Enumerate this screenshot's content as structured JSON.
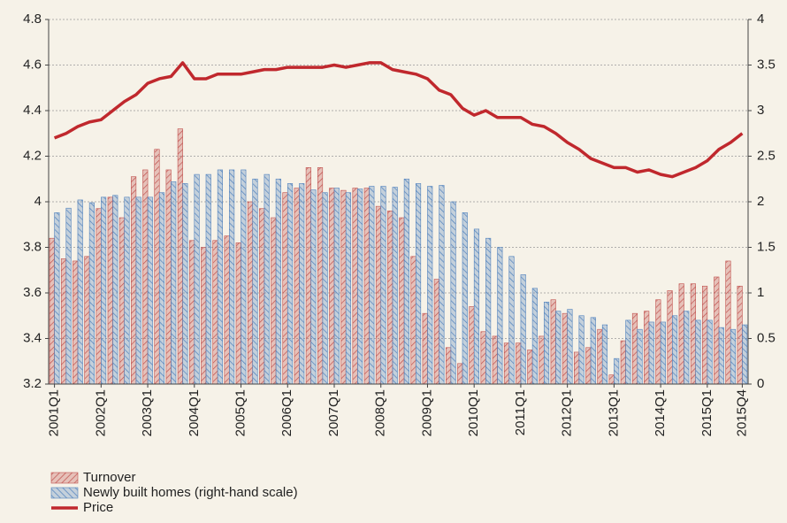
{
  "chart_data": {
    "type": "bar",
    "categories": [
      "2001Q1",
      null,
      null,
      null,
      "2002Q1",
      null,
      null,
      null,
      "2003Q1",
      null,
      null,
      null,
      "2004Q1",
      null,
      null,
      null,
      "2005Q1",
      null,
      null,
      null,
      "2006Q1",
      null,
      null,
      null,
      "2007Q1",
      null,
      null,
      null,
      "2008Q1",
      null,
      null,
      null,
      "2009Q1",
      null,
      null,
      null,
      "2010Q1",
      null,
      null,
      null,
      "2011Q1",
      null,
      null,
      null,
      "2012Q1",
      null,
      null,
      null,
      "2013Q1",
      null,
      null,
      null,
      "2014Q1",
      null,
      null,
      null,
      "2015Q1",
      null,
      null,
      "2015Q4"
    ],
    "series": [
      {
        "name": "Turnover",
        "color": "#c0504d",
        "values": [
          3.84,
          3.75,
          3.74,
          3.76,
          3.97,
          4.02,
          3.93,
          4.11,
          4.14,
          4.23,
          4.14,
          4.32,
          3.83,
          3.8,
          3.83,
          3.85,
          3.82,
          4.0,
          3.97,
          3.93,
          4.04,
          4.06,
          4.15,
          4.15,
          4.06,
          4.05,
          4.06,
          4.06,
          3.98,
          3.96,
          3.93,
          3.76,
          3.51,
          3.66,
          3.36,
          3.29,
          3.54,
          3.43,
          3.41,
          3.38,
          3.38,
          3.35,
          3.41,
          3.57,
          3.51,
          3.34,
          3.36,
          3.44,
          3.24,
          3.39,
          3.51,
          3.52,
          3.57,
          3.61,
          3.64,
          3.64,
          3.63,
          3.67,
          3.74,
          3.63
        ]
      },
      {
        "name": "Newly built homes (right-hand scale)",
        "color": "#4f81bd",
        "axis": "y2",
        "values": [
          1.88,
          1.93,
          2.02,
          1.99,
          2.05,
          2.07,
          2.05,
          2.05,
          2.05,
          2.1,
          2.22,
          2.2,
          2.3,
          2.3,
          2.35,
          2.35,
          2.35,
          2.25,
          2.3,
          2.25,
          2.2,
          2.2,
          2.13,
          2.1,
          2.15,
          2.1,
          2.14,
          2.17,
          2.17,
          2.16,
          2.25,
          2.2,
          2.17,
          2.18,
          2.0,
          1.88,
          1.7,
          1.6,
          1.5,
          1.4,
          1.2,
          1.05,
          0.9,
          0.8,
          0.82,
          0.75,
          0.73,
          0.65,
          0.28,
          0.7,
          0.6,
          0.68,
          0.68,
          0.75,
          0.8,
          0.7,
          0.7,
          0.62,
          0.6,
          0.65
        ]
      },
      {
        "name": "Price",
        "color": "#c0282d",
        "type": "line",
        "values": [
          4.28,
          4.3,
          4.33,
          4.35,
          4.36,
          4.4,
          4.44,
          4.47,
          4.52,
          4.54,
          4.55,
          4.61,
          4.54,
          4.54,
          4.56,
          4.56,
          4.56,
          4.57,
          4.58,
          4.58,
          4.59,
          4.59,
          4.59,
          4.59,
          4.6,
          4.59,
          4.6,
          4.61,
          4.61,
          4.58,
          4.57,
          4.56,
          4.54,
          4.49,
          4.47,
          4.41,
          4.38,
          4.4,
          4.37,
          4.37,
          4.37,
          4.34,
          4.33,
          4.3,
          4.26,
          4.23,
          4.19,
          4.17,
          4.15,
          4.15,
          4.13,
          4.14,
          4.12,
          4.11,
          4.13,
          4.15,
          4.18,
          4.23,
          4.26,
          4.3
        ]
      }
    ],
    "ylim": [
      3.2,
      4.8
    ],
    "yticks": [
      3.2,
      3.4,
      3.6,
      3.8,
      4,
      4.2,
      4.4,
      4.6,
      4.8
    ],
    "y2lim": [
      0,
      4
    ],
    "y2ticks": [
      0,
      0.5,
      1,
      1.5,
      2,
      2.5,
      3,
      3.5,
      4
    ],
    "grid": true
  }
}
